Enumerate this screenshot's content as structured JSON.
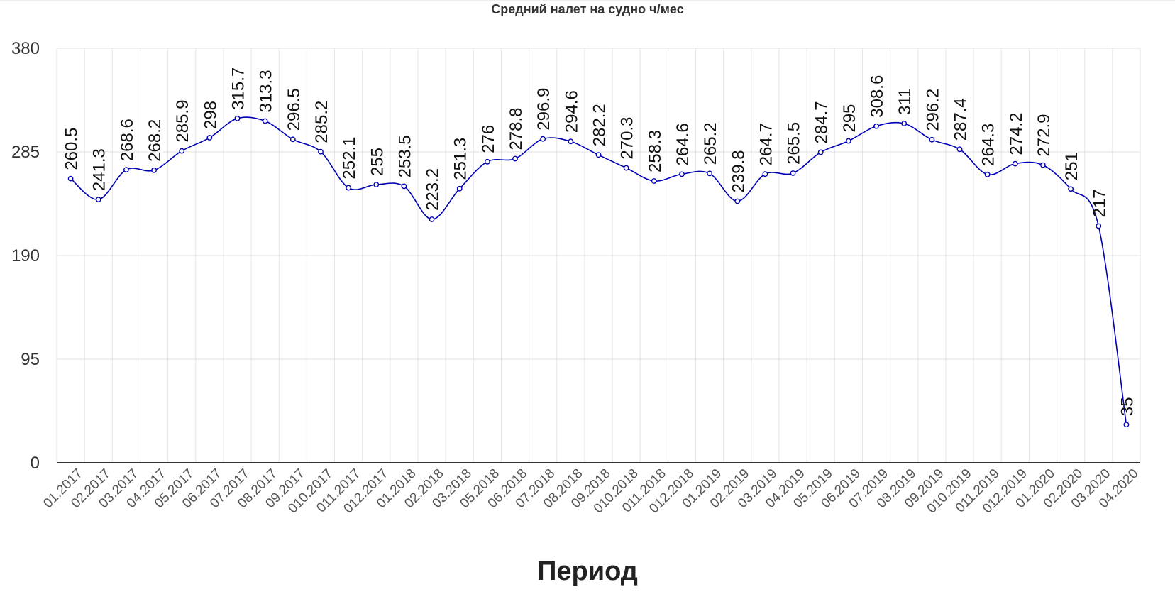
{
  "chart_data": {
    "type": "line",
    "title": "Средний налет на судно ч/мес",
    "xlabel": "Период",
    "ylabel": "",
    "ylim": [
      0,
      380
    ],
    "yticks": [
      0,
      95,
      190,
      285,
      380
    ],
    "grid": true,
    "line_color": "#0000b3",
    "categories": [
      "01.2017",
      "02.2017",
      "03.2017",
      "04.2017",
      "05.2017",
      "06.2017",
      "07.2017",
      "08.2017",
      "09.2017",
      "010.2017",
      "011.2017",
      "012.2017",
      "01.2018",
      "02.2018",
      "03.2018",
      "05.2018",
      "06.2018",
      "07.2018",
      "08.2018",
      "09.2018",
      "010.2018",
      "011.2018",
      "012.2018",
      "01.2019",
      "02.2019",
      "03.2019",
      "04.2019",
      "05.2019",
      "06.2019",
      "07.2019",
      "08.2019",
      "09.2019",
      "010.2019",
      "011.2019",
      "012.2019",
      "01.2020",
      "02.2020",
      "03.2020",
      "04.2020"
    ],
    "values": [
      260.5,
      241.3,
      268.6,
      268.2,
      285.9,
      298,
      315.7,
      313.3,
      296.5,
      285.2,
      252.1,
      255,
      253.5,
      223.2,
      251.3,
      276,
      278.8,
      296.9,
      294.6,
      282.2,
      270.3,
      258.3,
      264.6,
      265.2,
      239.8,
      264.7,
      265.5,
      284.7,
      295,
      308.6,
      311,
      296.2,
      287.4,
      264.3,
      274.2,
      272.9,
      251,
      217,
      35
    ]
  }
}
